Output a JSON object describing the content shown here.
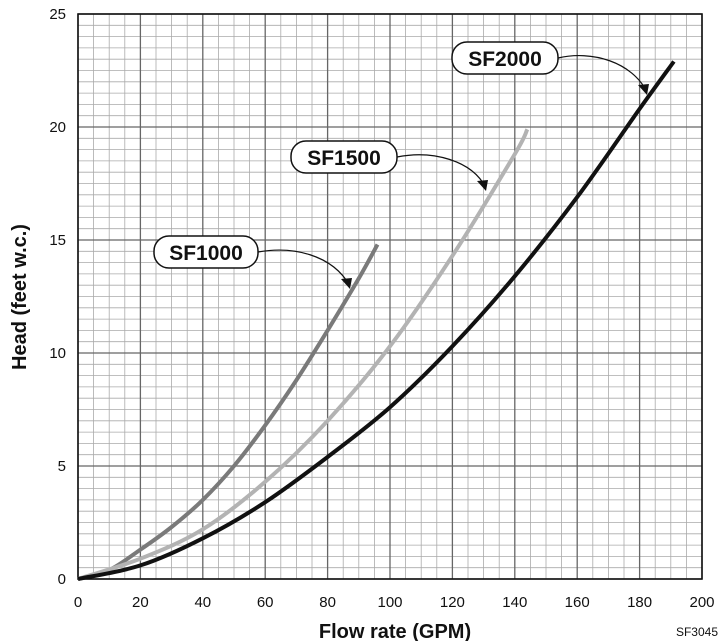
{
  "chart_data": {
    "type": "line",
    "xlabel": "Flow rate (GPM)",
    "ylabel": "Head (feet w.c.)",
    "xlim": [
      0,
      200
    ],
    "ylim": [
      0,
      25
    ],
    "x_ticks": [
      "0",
      "20",
      "40",
      "60",
      "80",
      "100",
      "120",
      "140",
      "160",
      "180",
      "200"
    ],
    "y_ticks": [
      "0",
      "5",
      "10",
      "15",
      "20",
      "25"
    ],
    "grid": true,
    "series": [
      {
        "name": "SF1000",
        "color": "#7a7a7a",
        "x": [
          0,
          10,
          20,
          30,
          40,
          50,
          60,
          70,
          80,
          90,
          96
        ],
        "y": [
          0,
          0.4,
          1.3,
          2.3,
          3.5,
          5.0,
          6.8,
          8.8,
          11.0,
          13.3,
          14.8
        ]
      },
      {
        "name": "SF1500",
        "color": "#b3b3b3",
        "x": [
          0,
          20,
          40,
          60,
          80,
          100,
          120,
          140,
          144
        ],
        "y": [
          0,
          0.9,
          2.2,
          4.3,
          7.0,
          10.3,
          14.3,
          18.8,
          19.9
        ]
      },
      {
        "name": "SF2000",
        "color": "#111111",
        "x": [
          0,
          20,
          40,
          60,
          80,
          100,
          120,
          140,
          160,
          180,
          191
        ],
        "y": [
          0,
          0.6,
          1.8,
          3.4,
          5.4,
          7.6,
          10.3,
          13.4,
          16.9,
          20.8,
          22.9
        ]
      }
    ]
  },
  "figure_code": "SF3045"
}
